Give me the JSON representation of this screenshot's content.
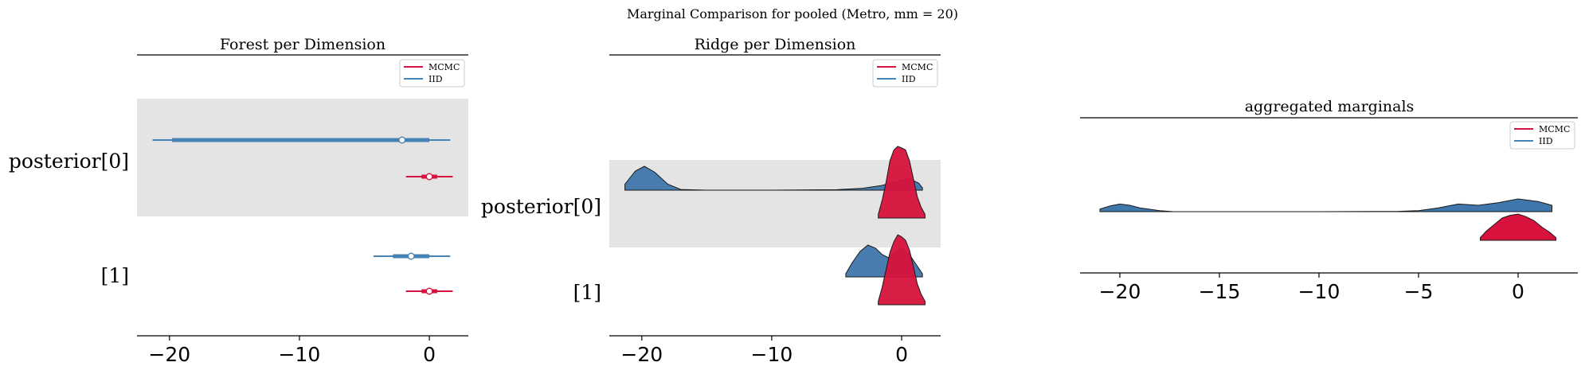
{
  "suptitle": "Marginal Comparison for pooled (Metro, mm = 20)",
  "colors": {
    "mcmc": "#d7123c",
    "iid": "#3f76ab",
    "iid_line": "#4682b4",
    "band": "#e4e4e4",
    "outline": "#1a1a1a"
  },
  "chart_data": [
    {
      "type": "forest",
      "title": "Forest per Dimension",
      "xlabel": "",
      "ylabel": "",
      "xlim": [
        -22.5,
        3
      ],
      "xticks": [
        -20,
        -10,
        0
      ],
      "xtick_labels": [
        "−20",
        "−10",
        "0"
      ],
      "ytick_labels": [
        "posterior[0]",
        "[1]"
      ],
      "legend": {
        "placement": "top-right",
        "entries": [
          "MCMC",
          "IID"
        ]
      },
      "series": [
        {
          "name": "MCMC",
          "intervals": [
            {
              "row": "posterior[0]",
              "hdi_low": -1.8,
              "hdi_high": 1.8,
              "iqr_low": -0.6,
              "iqr_high": 0.6,
              "median": 0.0
            },
            {
              "row": "[1]",
              "hdi_low": -1.8,
              "hdi_high": 1.8,
              "iqr_low": -0.6,
              "iqr_high": 0.6,
              "median": 0.0
            }
          ]
        },
        {
          "name": "IID",
          "intervals": [
            {
              "row": "posterior[0]",
              "hdi_low": -21.3,
              "hdi_high": 1.6,
              "iqr_low": -19.8,
              "iqr_high": 0.0,
              "median": -2.1
            },
            {
              "row": "[1]",
              "hdi_low": -4.3,
              "hdi_high": 1.6,
              "iqr_low": -2.8,
              "iqr_high": 0.0,
              "median": -1.4
            }
          ]
        }
      ]
    },
    {
      "type": "ridgeline",
      "title": "Ridge per Dimension",
      "xlabel": "",
      "ylabel": "",
      "xlim": [
        -22.5,
        3
      ],
      "xticks": [
        -20,
        -10,
        0
      ],
      "xtick_labels": [
        "−20",
        "−10",
        "0"
      ],
      "ytick_labels": [
        "posterior[0]",
        "[1]"
      ],
      "legend": {
        "placement": "top-right",
        "entries": [
          "MCMC",
          "IID"
        ]
      },
      "series": [
        {
          "name": "IID",
          "ridges": [
            {
              "row": "posterior[0]",
              "x": [
                -21.3,
                -20.5,
                -19.8,
                -19,
                -18,
                -17,
                -15,
                -10,
                -5,
                -3,
                -1.5,
                -0.5,
                0.5,
                1.3,
                1.6
              ],
              "density": [
                0.25,
                0.8,
                1.0,
                0.75,
                0.25,
                0.03,
                0.0,
                0.0,
                0.02,
                0.08,
                0.2,
                0.35,
                0.5,
                0.3,
                0.1
              ]
            },
            {
              "row": "[1]",
              "x": [
                -4.3,
                -3.8,
                -3.2,
                -2.6,
                -2.0,
                -1.5,
                -1.0,
                -0.5,
                0.0,
                0.6,
                1.1,
                1.6
              ],
              "density": [
                0.1,
                0.45,
                0.8,
                1.0,
                0.9,
                0.7,
                0.6,
                0.8,
                0.9,
                0.7,
                0.4,
                0.1
              ]
            }
          ]
        },
        {
          "name": "MCMC",
          "ridges": [
            {
              "row": "posterior[0]",
              "x": [
                -1.8,
                -1.5,
                -1.2,
                -0.9,
                -0.6,
                -0.3,
                0.0,
                0.3,
                0.6,
                0.9,
                1.2,
                1.5,
                1.8
              ],
              "density": [
                0.05,
                0.25,
                0.5,
                0.8,
                0.95,
                1.0,
                0.98,
                0.95,
                0.8,
                0.55,
                0.3,
                0.15,
                0.05
              ]
            },
            {
              "row": "[1]",
              "x": [
                -1.8,
                -1.5,
                -1.2,
                -0.9,
                -0.6,
                -0.3,
                0.0,
                0.3,
                0.6,
                0.9,
                1.2,
                1.5,
                1.8
              ],
              "density": [
                0.05,
                0.25,
                0.5,
                0.75,
                0.9,
                1.0,
                0.97,
                0.92,
                0.78,
                0.55,
                0.3,
                0.15,
                0.05
              ]
            }
          ]
        }
      ]
    },
    {
      "type": "area",
      "title": "aggregated marginals",
      "xlabel": "",
      "ylabel": "",
      "xlim": [
        -22,
        3
      ],
      "xticks": [
        -20,
        -15,
        -10,
        -5,
        0
      ],
      "xtick_labels": [
        "−20",
        "−15",
        "−10",
        "−5",
        "0"
      ],
      "legend": {
        "placement": "top-right",
        "entries": [
          "MCMC",
          "IID"
        ]
      },
      "series": [
        {
          "name": "IID",
          "x": [
            -21,
            -20.5,
            -20,
            -19.5,
            -19,
            -18,
            -17.3,
            -15,
            -10,
            -6,
            -5,
            -4,
            -3,
            -2,
            -1,
            0,
            1,
            1.7
          ],
          "density": [
            0.2,
            0.45,
            0.6,
            0.5,
            0.3,
            0.08,
            0.0,
            0.0,
            0.0,
            0.02,
            0.08,
            0.3,
            0.6,
            0.5,
            0.7,
            1.0,
            0.8,
            0.5
          ]
        },
        {
          "name": "MCMC",
          "x": [
            -1.9,
            -1.6,
            -1.2,
            -0.8,
            -0.4,
            0.0,
            0.4,
            0.8,
            1.2,
            1.6,
            1.9
          ],
          "density": [
            0.1,
            0.35,
            0.6,
            0.85,
            0.95,
            1.0,
            0.9,
            0.75,
            0.5,
            0.3,
            0.1
          ]
        }
      ]
    }
  ]
}
